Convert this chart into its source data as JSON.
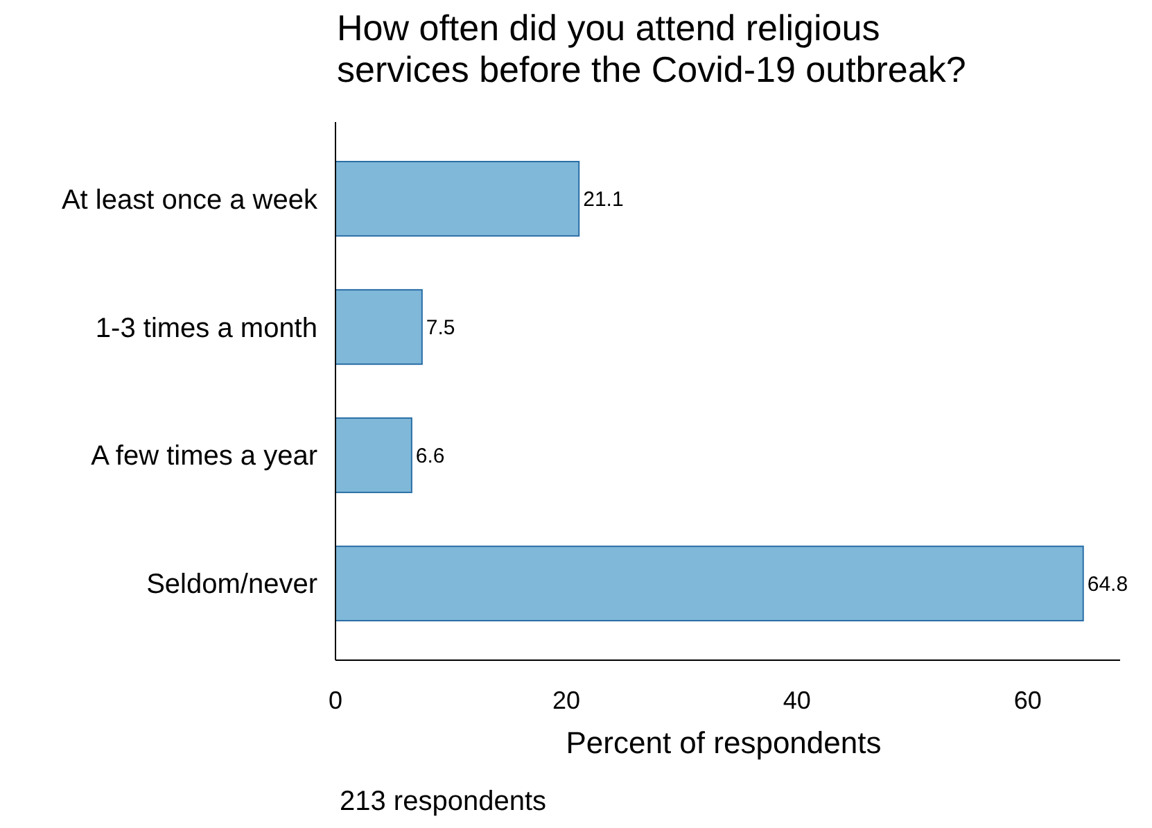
{
  "chart_data": {
    "type": "bar",
    "orientation": "horizontal",
    "title": "How often did you attend religious\nservices before the Covid-19 outbreak?",
    "categories": [
      "At least once a week",
      "1-3 times a month",
      "A few times a year",
      "Seldom/never"
    ],
    "values": [
      21.1,
      7.5,
      6.6,
      64.8
    ],
    "color": "#80b8d9",
    "data_labels": true,
    "xlim": [
      0,
      68
    ],
    "xticks": [
      0,
      20,
      40,
      60
    ],
    "xlabel": "Percent of respondents",
    "grid": false,
    "annotations": [
      "213 respondents"
    ]
  }
}
